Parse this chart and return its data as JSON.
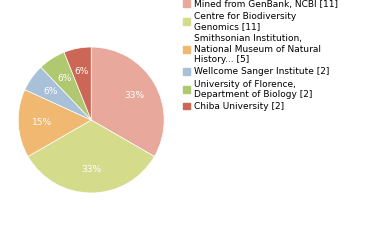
{
  "labels": [
    "Mined from GenBank, NCBI [11]",
    "Centre for Biodiversity\nGenomics [11]",
    "Smithsonian Institution,\nNational Museum of Natural\nHistory... [5]",
    "Wellcome Sanger Institute [2]",
    "University of Florence,\nDepartment of Biology [2]",
    "Chiba University [2]"
  ],
  "values": [
    11,
    11,
    5,
    2,
    2,
    2
  ],
  "colors": [
    "#E8A89C",
    "#D4DC8C",
    "#F0B870",
    "#A8C0D8",
    "#B0C870",
    "#CC6655"
  ],
  "pct_labels": [
    "33%",
    "33%",
    "15%",
    "6%",
    "6%",
    "6%"
  ],
  "startangle": 90,
  "text_color": "white",
  "fontsize": 6.5,
  "legend_fontsize": 6.5
}
